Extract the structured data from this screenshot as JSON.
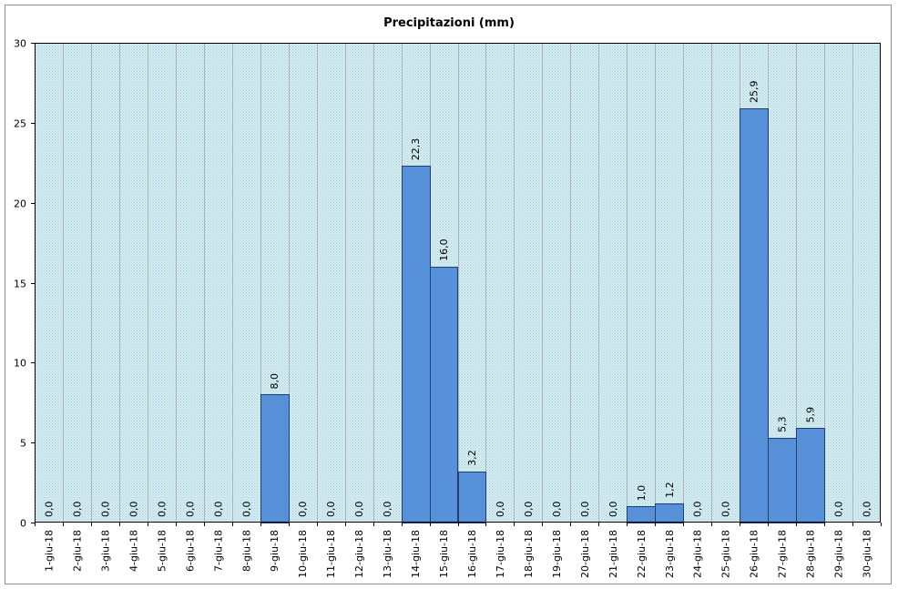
{
  "chart_data": {
    "type": "bar",
    "title": "Precipitazioni (mm)",
    "xlabel": "",
    "ylabel": "",
    "ylim": [
      0,
      30
    ],
    "yticks": [
      "0",
      "5",
      "10",
      "15",
      "20",
      "25",
      "30"
    ],
    "grid": true,
    "legend": "none",
    "categories": [
      "1-giu-18",
      "2-giu-18",
      "3-giu-18",
      "4-giu-18",
      "5-giu-18",
      "6-giu-18",
      "7-giu-18",
      "8-giu-18",
      "9-giu-18",
      "10-giu-18",
      "11-giu-18",
      "12-giu-18",
      "13-giu-18",
      "14-giu-18",
      "15-giu-18",
      "16-giu-18",
      "17-giu-18",
      "18-giu-18",
      "19-giu-18",
      "20-giu-18",
      "21-giu-18",
      "22-giu-18",
      "23-giu-18",
      "24-giu-18",
      "25-giu-18",
      "26-giu-18",
      "27-giu-18",
      "28-giu-18",
      "29-giu-18",
      "30-giu-18"
    ],
    "values": [
      0,
      0,
      0,
      0,
      0,
      0,
      0,
      0,
      8.0,
      0,
      0,
      0,
      0,
      22.3,
      16.0,
      3.2,
      0,
      0,
      0,
      0,
      0,
      1.0,
      1.2,
      0,
      0,
      25.9,
      5.3,
      5.9,
      0,
      0
    ],
    "data_labels": [
      "0,0",
      "0,0",
      "0,0",
      "0,0",
      "0,0",
      "0,0",
      "0,0",
      "0,0",
      "8,0",
      "0,0",
      "0,0",
      "0,0",
      "0,0",
      "22,3",
      "16,0",
      "3,2",
      "0,0",
      "0,0",
      "0,0",
      "0,0",
      "0,0",
      "1,0",
      "1,2",
      "0,0",
      "0,0",
      "25,9",
      "5,3",
      "5,9",
      "0,0",
      "0,0"
    ],
    "colors": {
      "bar_fill": "#5590d8",
      "bar_stroke": "#1f3f6e",
      "plot_bg": "#d8eef2",
      "plot_dots": "#9fcfd8",
      "grid": "#a8b4b8",
      "axis": "#000000"
    }
  }
}
